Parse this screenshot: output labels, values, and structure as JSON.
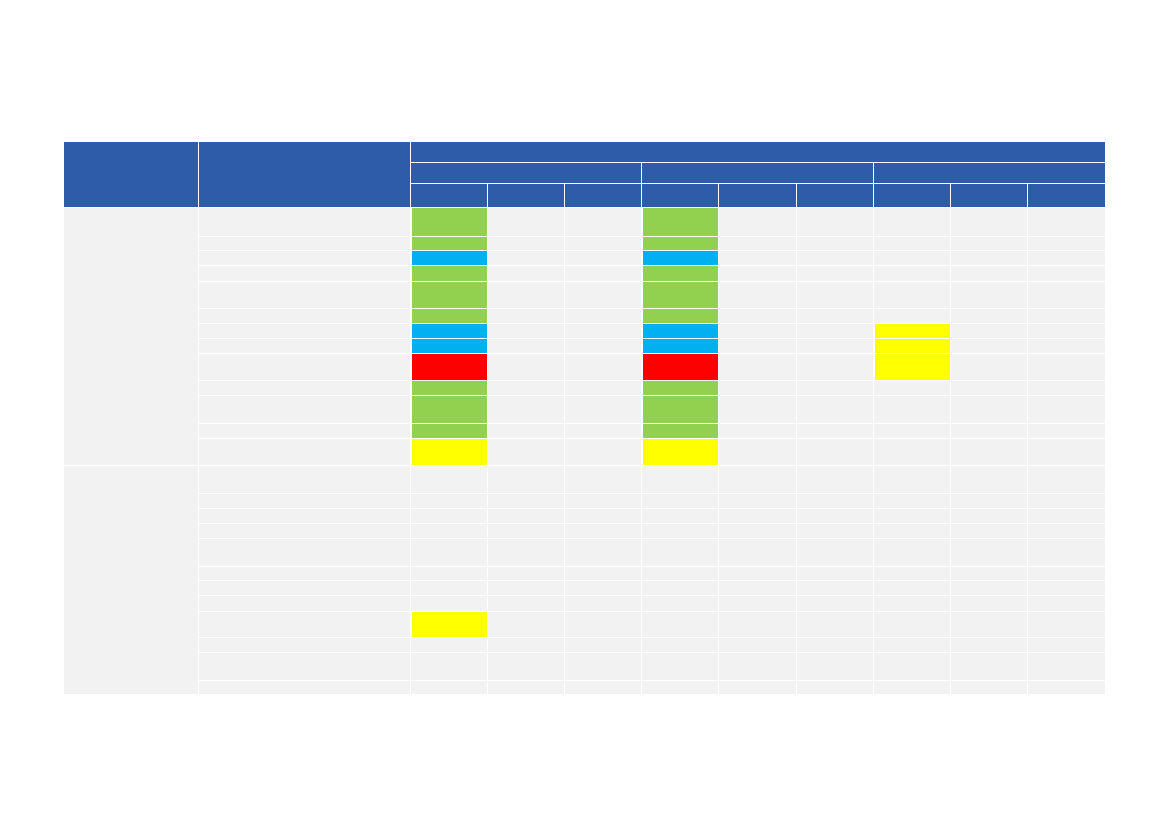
{
  "table": {
    "header_color": "#2f5ca8",
    "body_color": "#f2f2f2",
    "groups": [
      {
        "rows": [
          [
            "#92d050",
            null,
            null,
            "#92d050",
            null,
            null,
            null,
            null,
            null
          ],
          [
            "#92d050",
            null,
            null,
            "#92d050",
            null,
            null,
            null,
            null,
            null
          ],
          [
            "#00b0f0",
            null,
            null,
            "#00b0f0",
            null,
            null,
            null,
            null,
            null
          ],
          [
            "#92d050",
            null,
            null,
            "#92d050",
            null,
            null,
            null,
            null,
            null
          ],
          [
            "#92d050",
            null,
            null,
            "#92d050",
            null,
            null,
            null,
            null,
            null
          ],
          [
            "#92d050",
            null,
            null,
            "#92d050",
            null,
            null,
            null,
            null,
            null
          ],
          [
            "#00b0f0",
            null,
            null,
            "#00b0f0",
            null,
            null,
            "#ffff00",
            null,
            null
          ],
          [
            "#00b0f0",
            null,
            null,
            "#00b0f0",
            null,
            null,
            "#ffff00",
            null,
            null
          ],
          [
            "#ff0000",
            null,
            null,
            "#ff0000",
            null,
            null,
            "#ffff00",
            null,
            null
          ],
          [
            "#92d050",
            null,
            null,
            "#92d050",
            null,
            null,
            null,
            null,
            null
          ],
          [
            "#92d050",
            null,
            null,
            "#92d050",
            null,
            null,
            null,
            null,
            null
          ],
          [
            "#92d050",
            null,
            null,
            "#92d050",
            null,
            null,
            null,
            null,
            null
          ],
          [
            "#ffff00",
            null,
            null,
            "#ffff00",
            null,
            null,
            null,
            null,
            null
          ]
        ]
      },
      {
        "rows": [
          [
            null,
            null,
            null,
            null,
            null,
            null,
            null,
            null,
            null
          ],
          [
            null,
            null,
            null,
            null,
            null,
            null,
            null,
            null,
            null
          ],
          [
            null,
            null,
            null,
            null,
            null,
            null,
            null,
            null,
            null
          ],
          [
            null,
            null,
            null,
            null,
            null,
            null,
            null,
            null,
            null
          ],
          [
            null,
            null,
            null,
            null,
            null,
            null,
            null,
            null,
            null
          ],
          [
            null,
            null,
            null,
            null,
            null,
            null,
            null,
            null,
            null
          ],
          [
            null,
            null,
            null,
            null,
            null,
            null,
            null,
            null,
            null
          ],
          [
            null,
            null,
            null,
            null,
            null,
            null,
            null,
            null,
            null
          ],
          [
            "#ffff00",
            null,
            null,
            null,
            null,
            null,
            null,
            null,
            null
          ],
          [
            null,
            null,
            null,
            null,
            null,
            null,
            null,
            null,
            null
          ],
          [
            null,
            null,
            null,
            null,
            null,
            null,
            null,
            null,
            null
          ],
          [
            null,
            null,
            null,
            null,
            null,
            null,
            null,
            null,
            null
          ]
        ]
      }
    ]
  }
}
